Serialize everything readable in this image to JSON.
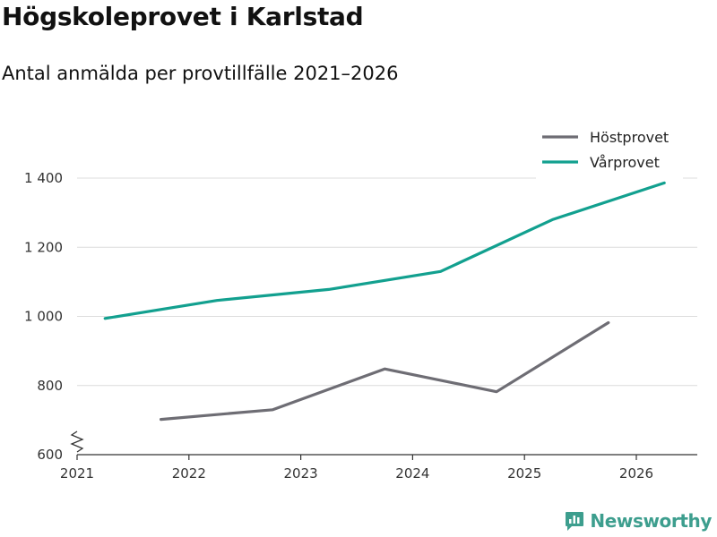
{
  "title": "Högskoleprovet i Karlstad",
  "subtitle": "Antal anmälda per provtillfälle 2021–2026",
  "brand": {
    "name": "Newsworthy",
    "color": "#3d9e8e"
  },
  "chart_data": {
    "type": "line",
    "title": "Högskoleprovet i Karlstad",
    "subtitle": "Antal anmälda per provtillfälle 2021–2026",
    "xlim": [
      2021,
      2026.55
    ],
    "ylim": [
      600,
      1450
    ],
    "x_ticks": [
      2021,
      2022,
      2023,
      2024,
      2025,
      2026
    ],
    "x_tick_labels": [
      "2021",
      "2022",
      "2023",
      "2024",
      "2025",
      "2026"
    ],
    "y_ticks": [
      600,
      800,
      1000,
      1200,
      1400
    ],
    "y_tick_labels": [
      "600",
      "800",
      "1 000",
      "1 200",
      "1 400"
    ],
    "y_axis_break": true,
    "grid": "horizontal",
    "legend_position": "top-right",
    "series": [
      {
        "name": "Höstprovet",
        "color": "#6e6d74",
        "x": [
          2021.75,
          2022.75,
          2023.75,
          2024.75,
          2025.75
        ],
        "y": [
          702,
          730,
          848,
          782,
          982
        ]
      },
      {
        "name": "Vårprovet",
        "color": "#12a08f",
        "x": [
          2021.25,
          2022.25,
          2023.25,
          2024.25,
          2025.25,
          2026.25
        ],
        "y": [
          994,
          1046,
          1078,
          1130,
          1280,
          1386
        ]
      }
    ]
  }
}
